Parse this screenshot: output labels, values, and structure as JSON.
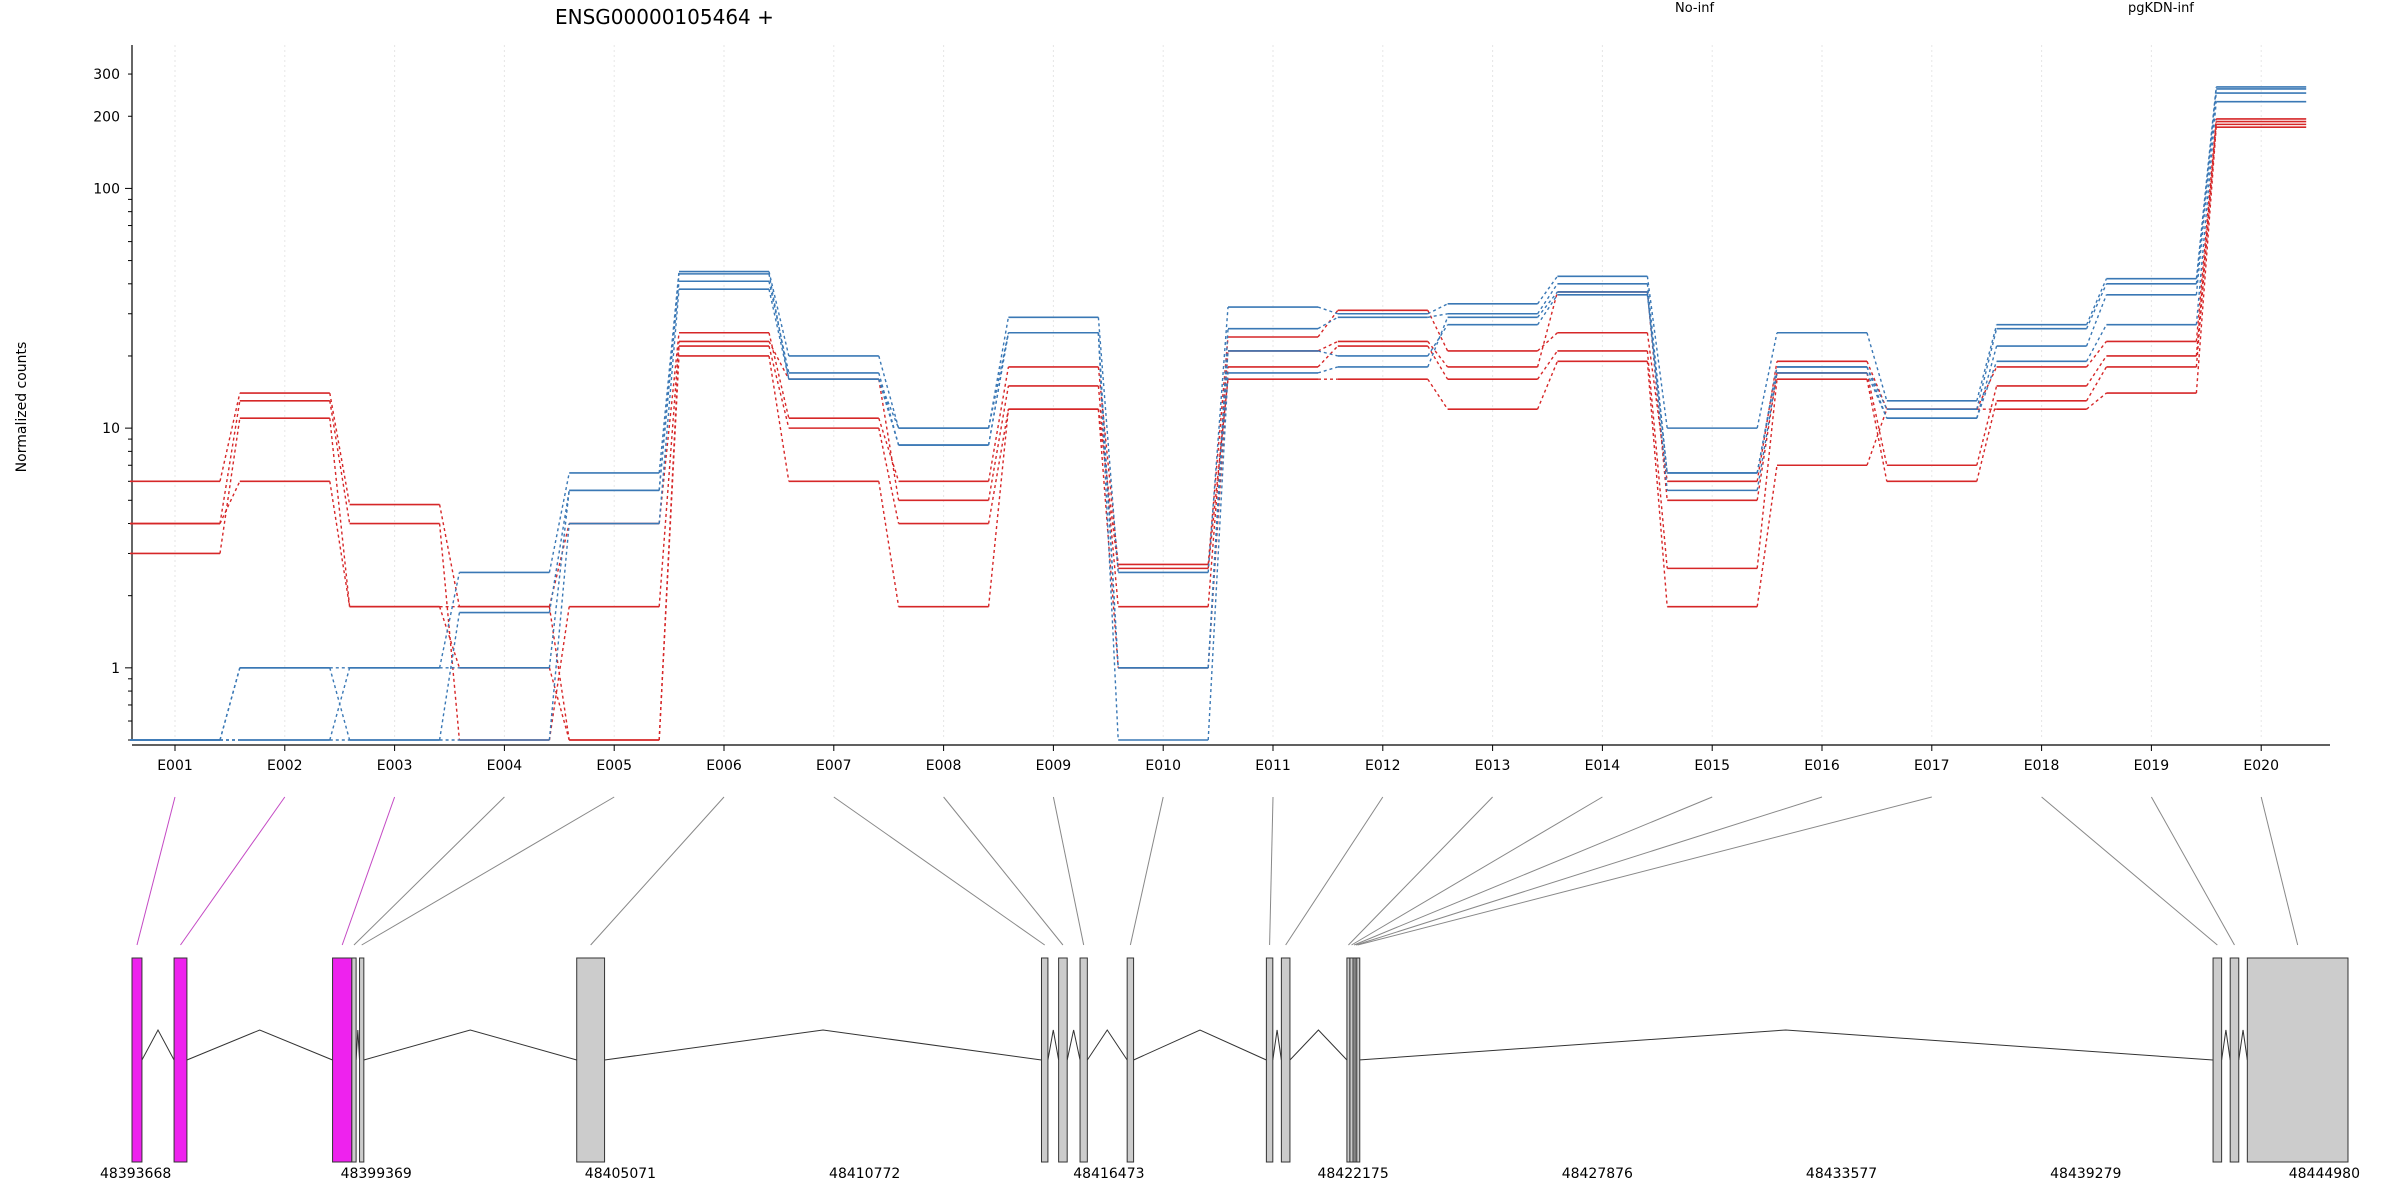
{
  "title": "ENSG00000105464 +",
  "ylabel": "Normalized counts",
  "legend": [
    {
      "name": "No-inf",
      "color": "#d62728"
    },
    {
      "name": "pgKDN-inf",
      "color": "#3a78b5"
    }
  ],
  "chart_data": {
    "type": "line",
    "title": "ENSG00000105464 +",
    "ylabel": "Normalized counts",
    "yscale": "log",
    "ylim": [
      0.5,
      350
    ],
    "yticks": [
      "1",
      "10",
      "100",
      "200",
      "300"
    ],
    "categories": [
      "E001",
      "E002",
      "E003",
      "E004",
      "E005",
      "E006",
      "E007",
      "E008",
      "E009",
      "E010",
      "E011",
      "E012",
      "E013",
      "E014",
      "E015",
      "E016",
      "E017",
      "E018",
      "E019",
      "E020"
    ],
    "grid": "vertical dotted",
    "legend_position": "top",
    "series": [
      {
        "group": "No-inf",
        "values": [
          6,
          14,
          4.8,
          1.8,
          4,
          25,
          11,
          6,
          18,
          2.7,
          24,
          31,
          21,
          25,
          6,
          19,
          12,
          18,
          23,
          195
        ]
      },
      {
        "group": "No-inf",
        "values": [
          4,
          13,
          4,
          0.5,
          1.8,
          23,
          16,
          5,
          15,
          1.8,
          21,
          23,
          18,
          37,
          5,
          17,
          7,
          15,
          20,
          190
        ]
      },
      {
        "group": "No-inf",
        "values": [
          3,
          11,
          1.8,
          1,
          0.5,
          22,
          10,
          4,
          12,
          1,
          18,
          22,
          16,
          21,
          2.6,
          16,
          6,
          13,
          18,
          185
        ]
      },
      {
        "group": "No-inf",
        "values": [
          4,
          6,
          1.8,
          1.8,
          0.5,
          20,
          6,
          1.8,
          12,
          2.6,
          16,
          16,
          12,
          19,
          1.8,
          7,
          12,
          12,
          14,
          180
        ]
      },
      {
        "group": "pgKDN-inf",
        "values": [
          0.5,
          1,
          1,
          2.5,
          6.5,
          45,
          20,
          10,
          29,
          2.5,
          32,
          30,
          33,
          43,
          10,
          25,
          13,
          27,
          42,
          265
        ]
      },
      {
        "group": "pgKDN-inf",
        "values": [
          0.5,
          1,
          0.5,
          1.7,
          5.5,
          41,
          17,
          8.5,
          25,
          1,
          26,
          29,
          30,
          40,
          6.5,
          18,
          12,
          26,
          40,
          260
        ]
      },
      {
        "group": "pgKDN-inf",
        "values": [
          0.5,
          0.5,
          0.5,
          0.5,
          4,
          38,
          16,
          8.5,
          25,
          0.5,
          17,
          18,
          29,
          37,
          5.5,
          17,
          11,
          22,
          36,
          250
        ]
      },
      {
        "group": "pgKDN-inf",
        "values": [
          0.5,
          0.5,
          1,
          1,
          5.5,
          44,
          16,
          10,
          25,
          1,
          21,
          20,
          27,
          36,
          6.5,
          18,
          11,
          19,
          27,
          230
        ]
      }
    ]
  },
  "gene_model": {
    "coordinates": [
      "48393668",
      "48399369",
      "48405071",
      "48410772",
      "48416473",
      "48422175",
      "48427876",
      "48433577",
      "48439279",
      "48444980"
    ],
    "range": [
      48393668,
      48444980
    ],
    "exons": [
      {
        "start": 48393668,
        "end": 48393900,
        "color": "#ee22ee",
        "label": "E001"
      },
      {
        "start": 48394650,
        "end": 48394950,
        "color": "#ee22ee",
        "label": "E002"
      },
      {
        "start": 48398350,
        "end": 48398800,
        "color": "#ee22ee",
        "label": "E003"
      },
      {
        "start": 48398800,
        "end": 48398900,
        "color": "#cccccc",
        "label": "E004"
      },
      {
        "start": 48398980,
        "end": 48399080,
        "color": "#cccccc",
        "label": "E005"
      },
      {
        "start": 48404050,
        "end": 48404700,
        "color": "#cccccc",
        "label": "E006"
      },
      {
        "start": 48414900,
        "end": 48415050,
        "color": "#cccccc",
        "label": "E007"
      },
      {
        "start": 48415300,
        "end": 48415500,
        "color": "#cccccc",
        "label": "E008"
      },
      {
        "start": 48415800,
        "end": 48415970,
        "color": "#cccccc",
        "label": "E009"
      },
      {
        "start": 48416900,
        "end": 48417050,
        "color": "#cccccc",
        "label": "E010"
      },
      {
        "start": 48420150,
        "end": 48420300,
        "color": "#cccccc",
        "label": "E011"
      },
      {
        "start": 48420500,
        "end": 48420700,
        "color": "#cccccc",
        "label": "E012"
      },
      {
        "start": 48422030,
        "end": 48422100,
        "color": "#cccccc",
        "label": "E013"
      },
      {
        "start": 48422100,
        "end": 48422175,
        "color": "#cccccc",
        "label": "E014"
      },
      {
        "start": 48422175,
        "end": 48422220,
        "color": "#cccccc",
        "label": "E015"
      },
      {
        "start": 48422220,
        "end": 48422260,
        "color": "#cccccc",
        "label": "E016"
      },
      {
        "start": 48422260,
        "end": 48422300,
        "color": "#cccccc",
        "label": "E017"
      },
      {
        "start": 48442250,
        "end": 48442450,
        "color": "#cccccc",
        "label": "E018"
      },
      {
        "start": 48442650,
        "end": 48442850,
        "color": "#cccccc",
        "label": "E019"
      },
      {
        "start": 48443050,
        "end": 48445400,
        "color": "#cccccc",
        "label": "E020"
      }
    ]
  }
}
